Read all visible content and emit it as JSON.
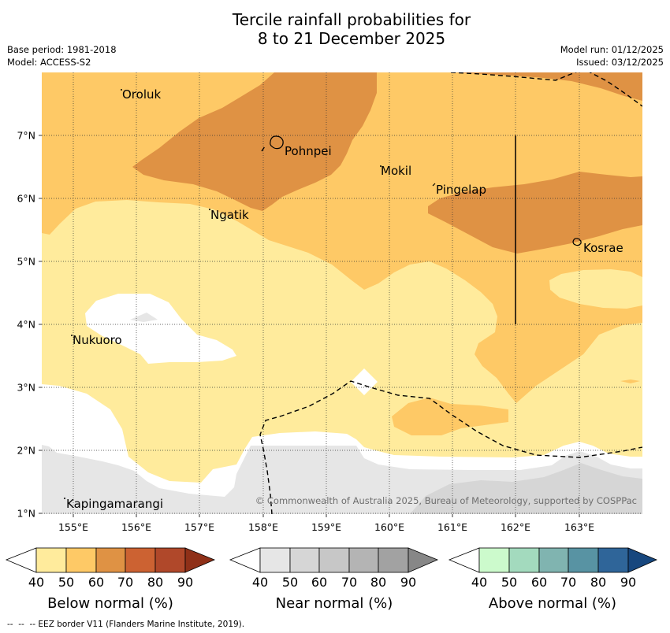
{
  "title": {
    "line1": "Tercile rainfall probabilities for",
    "line2": "8 to 21 December 2025"
  },
  "meta": {
    "base_period": "Base period: 1981-2018",
    "model": "Model: ACCESS-S2",
    "model_run": "Model run: 01/12/2025",
    "issued": "Issued: 03/12/2025"
  },
  "map": {
    "lat_labels": [
      "7°N",
      "6°N",
      "5°N",
      "4°N",
      "3°N",
      "2°N",
      "1°N"
    ],
    "lon_labels": [
      "155°E",
      "156°E",
      "157°E",
      "158°E",
      "159°E",
      "160°E",
      "161°E",
      "162°E",
      "163°E"
    ],
    "places": [
      "Oroluk",
      "Pohnpei",
      "Mokil",
      "Pingelap",
      "Ngatik",
      "Kosrae",
      "Nukuoro",
      "Kapingamarangi"
    ],
    "copyright": "© Commonwealth of Australia 2025, Bureau of Meteorology, supported by COSPPac",
    "colors": {
      "background": "#ffffff",
      "eez_line": "#000000",
      "grid": "#333333"
    }
  },
  "legends": [
    {
      "title": "Below normal (%)",
      "ticks": [
        "40",
        "50",
        "60",
        "70",
        "80",
        "90"
      ],
      "colors": [
        "#ffffff",
        "#ffeb9c",
        "#fec966",
        "#df9244",
        "#cc6232",
        "#b0482a",
        "#8f3018"
      ]
    },
    {
      "title": "Near normal (%)",
      "ticks": [
        "40",
        "50",
        "60",
        "70",
        "80",
        "90"
      ],
      "colors": [
        "#ffffff",
        "#e6e6e6",
        "#d6d6d6",
        "#c7c7c7",
        "#b4b4b4",
        "#a2a2a2",
        "#878787"
      ]
    },
    {
      "title": "Above normal (%)",
      "ticks": [
        "40",
        "50",
        "60",
        "70",
        "80",
        "90"
      ],
      "colors": [
        "#ffffff",
        "#ccfacc",
        "#a3dabe",
        "#80b4b0",
        "#5893a3",
        "#2f6599",
        "#17477e"
      ]
    }
  ],
  "footnote": "--  --  -- EEZ border V11 (Flanders Marine Institute, 2019)."
}
